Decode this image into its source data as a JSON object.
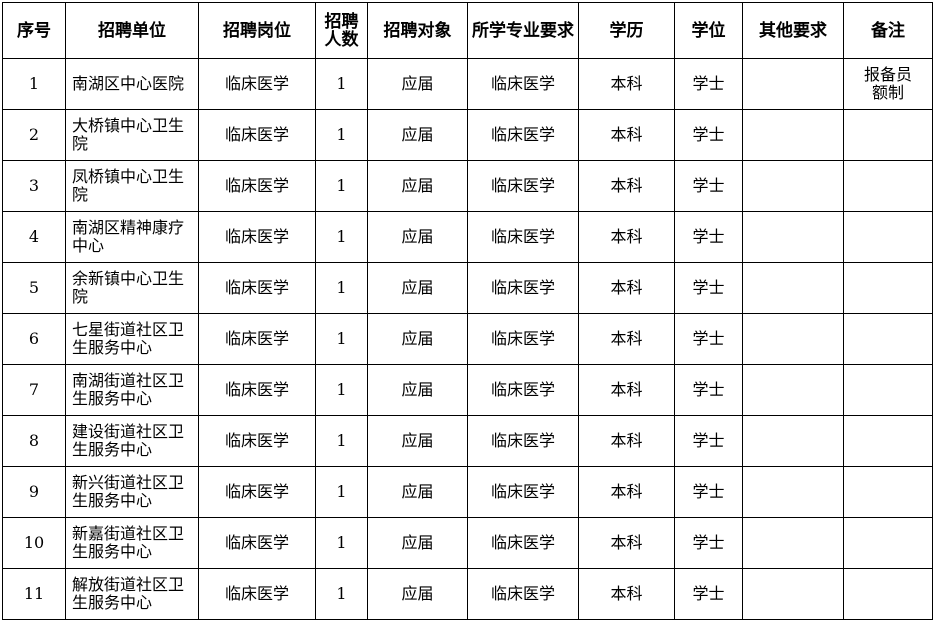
{
  "table": {
    "headers": [
      "序号",
      "招聘单位",
      "招聘岗位",
      "招聘人数",
      "招聘对象",
      "所学专业要求",
      "学历",
      "学位",
      "其他要求",
      "备注"
    ],
    "rows": [
      {
        "no": 1,
        "unit": "南湖区中心医院",
        "post": "临床医学",
        "count": 1,
        "target": "应届",
        "major": "临床医学",
        "edu": "本科",
        "degree": "学士",
        "note": "报备员额制"
      },
      {
        "no": 2,
        "unit": "大桥镇中心卫生院",
        "post": "临床医学",
        "count": 1,
        "target": "应届",
        "major": "临床医学",
        "edu": "本科",
        "degree": "学士"
      },
      {
        "no": 3,
        "unit": "凤桥镇中心卫生院",
        "post": "临床医学",
        "count": 1,
        "target": "应届",
        "major": "临床医学",
        "edu": "本科",
        "degree": "学士"
      },
      {
        "no": 4,
        "unit": "南湖区精神康疗中心",
        "post": "临床医学",
        "count": 1,
        "target": "应届",
        "major": "临床医学",
        "edu": "本科",
        "degree": "学士"
      },
      {
        "no": 5,
        "unit": "余新镇中心卫生院",
        "post": "临床医学",
        "count": 1,
        "target": "应届",
        "major": "临床医学",
        "edu": "本科",
        "degree": "学士"
      },
      {
        "no": 6,
        "unit": "七星街道社区卫生服务中心",
        "post": "临床医学",
        "count": 1,
        "target": "应届",
        "major": "临床医学",
        "edu": "本科",
        "degree": "学士"
      },
      {
        "no": 7,
        "unit": "南湖街道社区卫生服务中心",
        "post": "临床医学",
        "count": 1,
        "target": "应届",
        "major": "临床医学",
        "edu": "本科",
        "degree": "学士"
      },
      {
        "no": 8,
        "unit": "建设街道社区卫生服务中心",
        "post": "临床医学",
        "count": 1,
        "target": "应届",
        "major": "临床医学",
        "edu": "本科",
        "degree": "学士"
      },
      {
        "no": 9,
        "unit": "新兴街道社区卫生服务中心",
        "post": "临床医学",
        "count": 1,
        "target": "应届",
        "major": "临床医学",
        "edu": "本科",
        "degree": "学士"
      },
      {
        "no": 10,
        "unit": "新嘉街道社区卫生服务中心",
        "post": "临床医学",
        "count": 1,
        "target": "应届",
        "major": "临床医学",
        "edu": "本科",
        "degree": "学士"
      },
      {
        "no": 11,
        "unit": "解放街道社区卫生服务中心",
        "post": "临床医学",
        "count": 1,
        "target": "应届",
        "major": "临床医学",
        "edu": "本科",
        "degree": "学士"
      }
    ]
  }
}
